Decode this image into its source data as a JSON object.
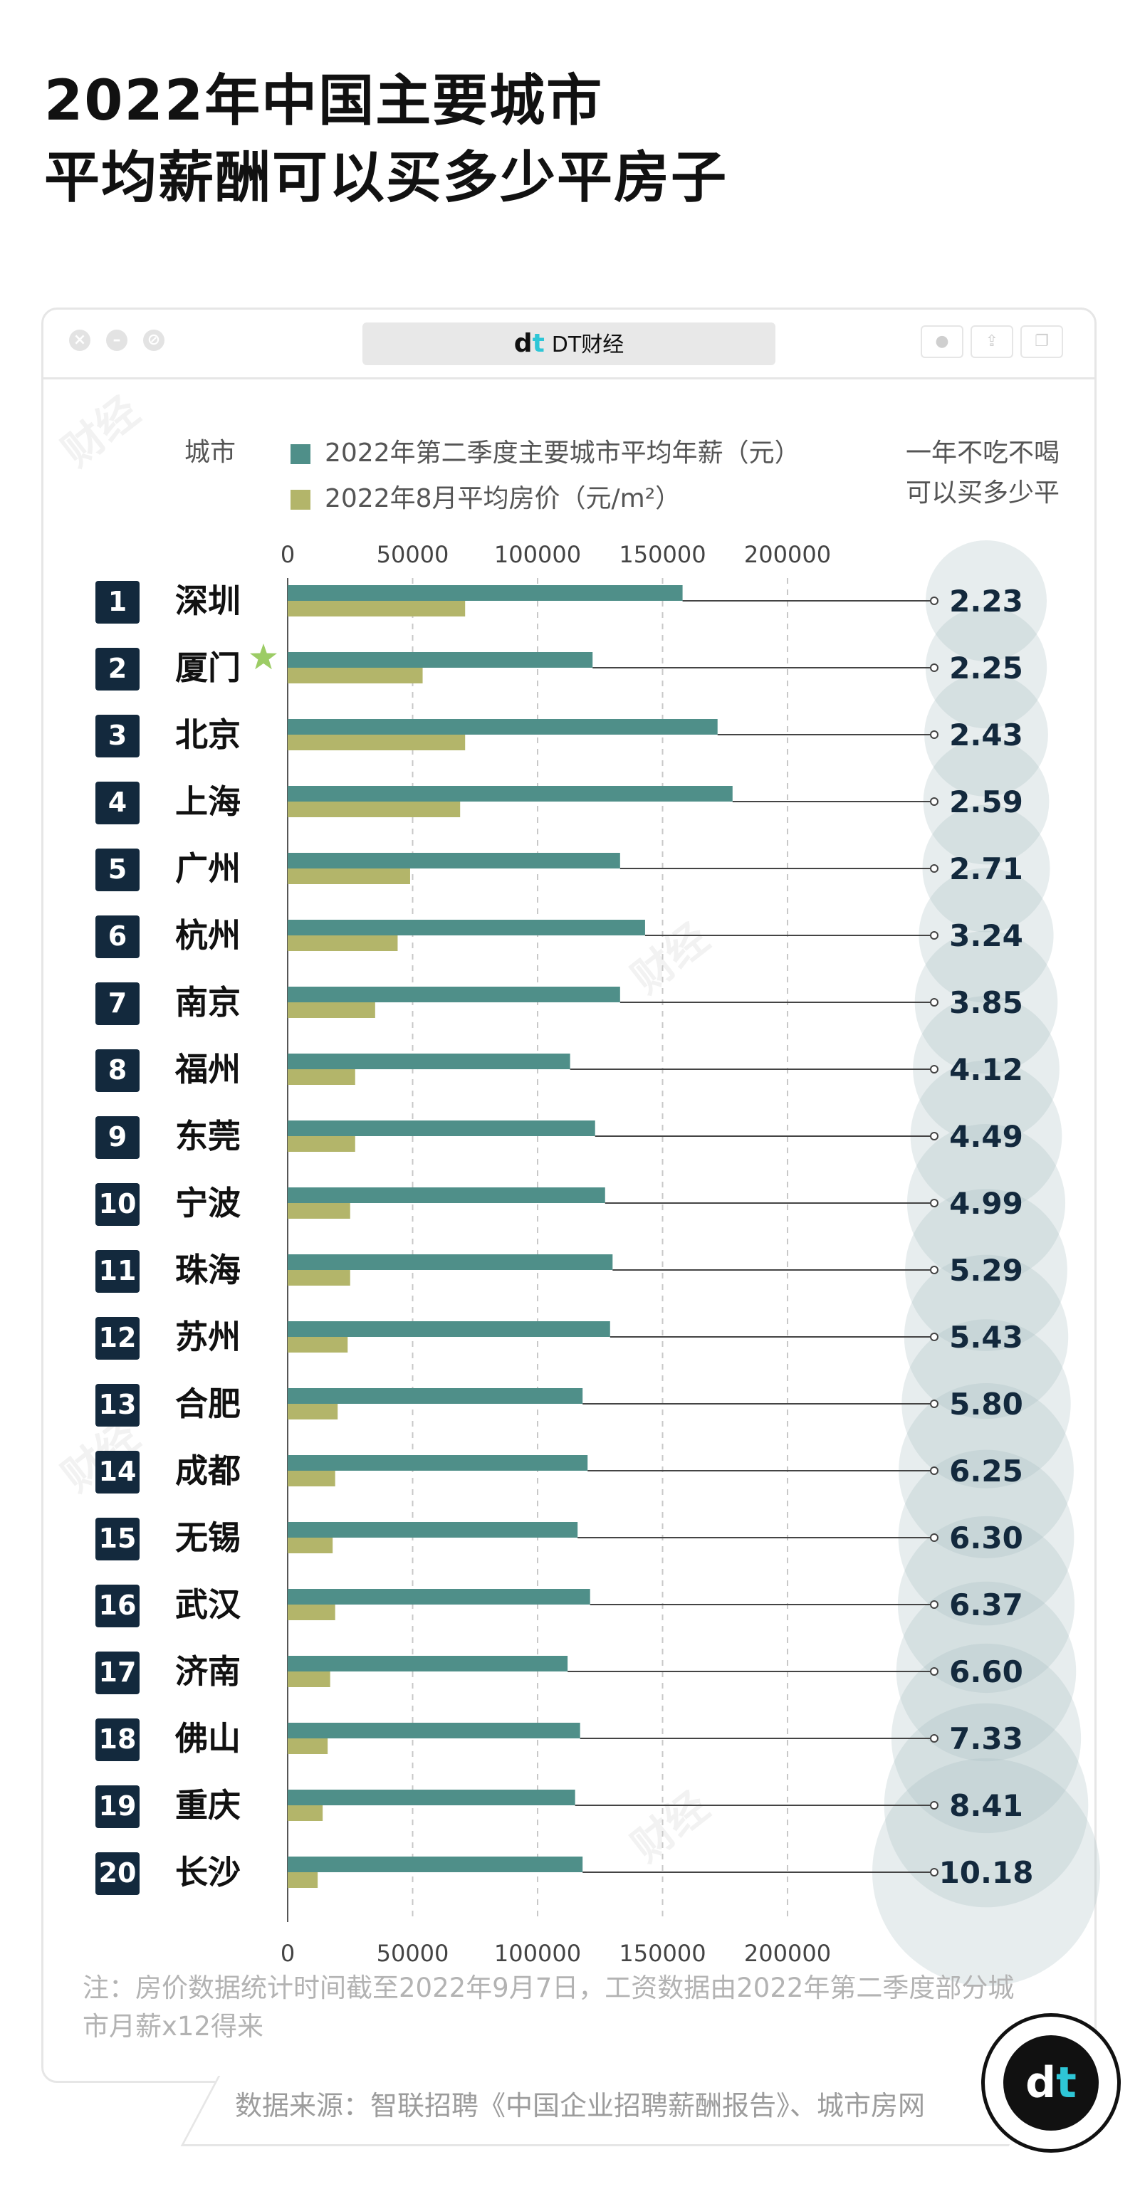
{
  "title_lines": [
    "2022年中国主要城市",
    "平均薪酬可以买多少平房子"
  ],
  "window": {
    "address_logo": "dt",
    "address_text": "DT财经",
    "watermark_text": "财经"
  },
  "colors": {
    "salary": "#4f8f89",
    "price": "#b3b56a",
    "rank_bg": "#13293d",
    "bubble": "#a9bdc2",
    "star": "#9ccc65"
  },
  "chart_data": {
    "type": "bar",
    "orientation": "horizontal",
    "category_header": "城市",
    "value_header": [
      "一年不吃不喝",
      "可以买多少平"
    ],
    "ranks": [
      "1",
      "2",
      "3",
      "4",
      "5",
      "6",
      "7",
      "8",
      "9",
      "10",
      "11",
      "12",
      "13",
      "14",
      "15",
      "16",
      "17",
      "18",
      "19",
      "20"
    ],
    "categories": [
      "深圳",
      "厦门",
      "北京",
      "上海",
      "广州",
      "杭州",
      "南京",
      "福州",
      "东莞",
      "宁波",
      "珠海",
      "苏州",
      "合肥",
      "成都",
      "无锡",
      "武汉",
      "济南",
      "佛山",
      "重庆",
      "长沙"
    ],
    "series": [
      {
        "name": "2022年第二季度主要城市平均年薪（元）",
        "values": [
          158000,
          122000,
          172000,
          178000,
          133000,
          143000,
          133000,
          113000,
          123000,
          127000,
          130000,
          129000,
          118000,
          120000,
          116000,
          121000,
          112000,
          117000,
          115000,
          118000
        ]
      },
      {
        "name": "2022年8月平均房价（元/m²）",
        "values": [
          71000,
          54000,
          71000,
          69000,
          49000,
          44000,
          35000,
          27000,
          27000,
          25000,
          25000,
          24000,
          20000,
          19000,
          18000,
          19000,
          17000,
          16000,
          14000,
          12000
        ]
      }
    ],
    "ratio_values": [
      "2.23",
      "2.25",
      "2.43",
      "2.59",
      "2.71",
      "3.24",
      "3.85",
      "4.12",
      "4.49",
      "4.99",
      "5.29",
      "5.43",
      "5.80",
      "6.25",
      "6.30",
      "6.37",
      "6.60",
      "7.33",
      "8.41",
      "10.18"
    ],
    "highlight_index": 1,
    "xlim": [
      0,
      200000
    ],
    "x_ticks": [
      "0",
      "50000",
      "100000",
      "150000",
      "200000"
    ],
    "grid": "dashed vertical",
    "legend_position": "top"
  },
  "note": "注：房价数据统计时间截至2022年9月7日，工资数据由2022年第二季度部分城市月薪x12得来",
  "source": "数据来源：智联招聘《中国企业招聘薪酬报告》、城市房网",
  "badge": {
    "logo": "dt"
  }
}
